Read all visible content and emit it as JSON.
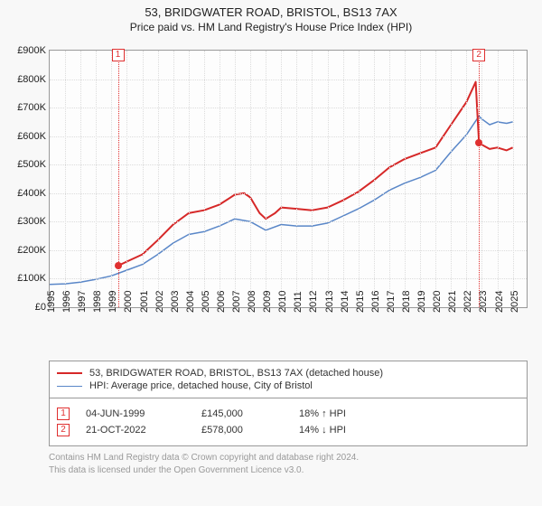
{
  "title": "53, BRIDGWATER ROAD, BRISTOL, BS13 7AX",
  "subtitle": "Price paid vs. HM Land Registry's House Price Index (HPI)",
  "chart": {
    "type": "line",
    "x_years": [
      1995,
      1996,
      1997,
      1998,
      1999,
      2000,
      2001,
      2002,
      2003,
      2004,
      2005,
      2006,
      2007,
      2008,
      2009,
      2010,
      2011,
      2012,
      2013,
      2014,
      2015,
      2016,
      2017,
      2018,
      2019,
      2020,
      2021,
      2022,
      2023,
      2024,
      2025
    ],
    "x_range": [
      1995,
      2025.9
    ],
    "ylim": [
      0,
      900000
    ],
    "ytick_step": 100000,
    "ytick_labels": [
      "£0",
      "£100K",
      "£200K",
      "£300K",
      "£400K",
      "£500K",
      "£600K",
      "£700K",
      "£800K",
      "£900K"
    ],
    "plot_bg": "#fdfdfd",
    "border_color": "#999999",
    "grid_color": "#dcdcdc",
    "label_color": "#222222",
    "font_size_labels": 11,
    "series": {
      "property": {
        "label": "53, BRIDGWATER ROAD, BRISTOL, BS13 7AX (detached house)",
        "color": "#d62828",
        "width": 2,
        "data": [
          [
            1999.42,
            145000
          ],
          [
            2000,
            160000
          ],
          [
            2001,
            185000
          ],
          [
            2002,
            235000
          ],
          [
            2003,
            290000
          ],
          [
            2004,
            330000
          ],
          [
            2005,
            340000
          ],
          [
            2006,
            360000
          ],
          [
            2007,
            395000
          ],
          [
            2007.6,
            400000
          ],
          [
            2008,
            385000
          ],
          [
            2008.6,
            330000
          ],
          [
            2009,
            310000
          ],
          [
            2009.6,
            330000
          ],
          [
            2010,
            350000
          ],
          [
            2011,
            345000
          ],
          [
            2012,
            340000
          ],
          [
            2013,
            350000
          ],
          [
            2014,
            375000
          ],
          [
            2015,
            405000
          ],
          [
            2016,
            445000
          ],
          [
            2017,
            490000
          ],
          [
            2018,
            520000
          ],
          [
            2019,
            540000
          ],
          [
            2020,
            560000
          ],
          [
            2021,
            640000
          ],
          [
            2022,
            720000
          ],
          [
            2022.6,
            790000
          ],
          [
            2022.81,
            578000
          ],
          [
            2023,
            570000
          ],
          [
            2023.5,
            555000
          ],
          [
            2024,
            560000
          ],
          [
            2024.6,
            550000
          ],
          [
            2025,
            560000
          ]
        ]
      },
      "hpi": {
        "label": "HPI: Average price, detached house, City of Bristol",
        "color": "#5a87c8",
        "width": 1.5,
        "data": [
          [
            1995,
            80000
          ],
          [
            1996,
            82000
          ],
          [
            1997,
            88000
          ],
          [
            1998,
            98000
          ],
          [
            1999,
            110000
          ],
          [
            2000,
            130000
          ],
          [
            2001,
            150000
          ],
          [
            2002,
            185000
          ],
          [
            2003,
            225000
          ],
          [
            2004,
            255000
          ],
          [
            2005,
            265000
          ],
          [
            2006,
            285000
          ],
          [
            2007,
            310000
          ],
          [
            2008,
            300000
          ],
          [
            2009,
            270000
          ],
          [
            2010,
            290000
          ],
          [
            2011,
            285000
          ],
          [
            2012,
            285000
          ],
          [
            2013,
            295000
          ],
          [
            2014,
            320000
          ],
          [
            2015,
            345000
          ],
          [
            2016,
            375000
          ],
          [
            2017,
            410000
          ],
          [
            2018,
            435000
          ],
          [
            2019,
            455000
          ],
          [
            2020,
            480000
          ],
          [
            2021,
            545000
          ],
          [
            2022,
            605000
          ],
          [
            2022.81,
            670000
          ],
          [
            2023,
            660000
          ],
          [
            2023.5,
            640000
          ],
          [
            2024,
            650000
          ],
          [
            2024.6,
            645000
          ],
          [
            2025,
            650000
          ]
        ]
      }
    },
    "sales_markers": [
      {
        "n": "1",
        "year": 1999.42,
        "price": 145000
      },
      {
        "n": "2",
        "year": 2022.81,
        "price": 578000
      }
    ],
    "marker_color": "#e03030"
  },
  "sales": [
    {
      "n": "1",
      "date": "04-JUN-1999",
      "price": "£145,000",
      "delta": "18% ↑ HPI"
    },
    {
      "n": "2",
      "date": "21-OCT-2022",
      "price": "£578,000",
      "delta": "14% ↓ HPI"
    }
  ],
  "footer": {
    "line1": "Contains HM Land Registry data © Crown copyright and database right 2024.",
    "line2": "This data is licensed under the Open Government Licence v3.0."
  }
}
